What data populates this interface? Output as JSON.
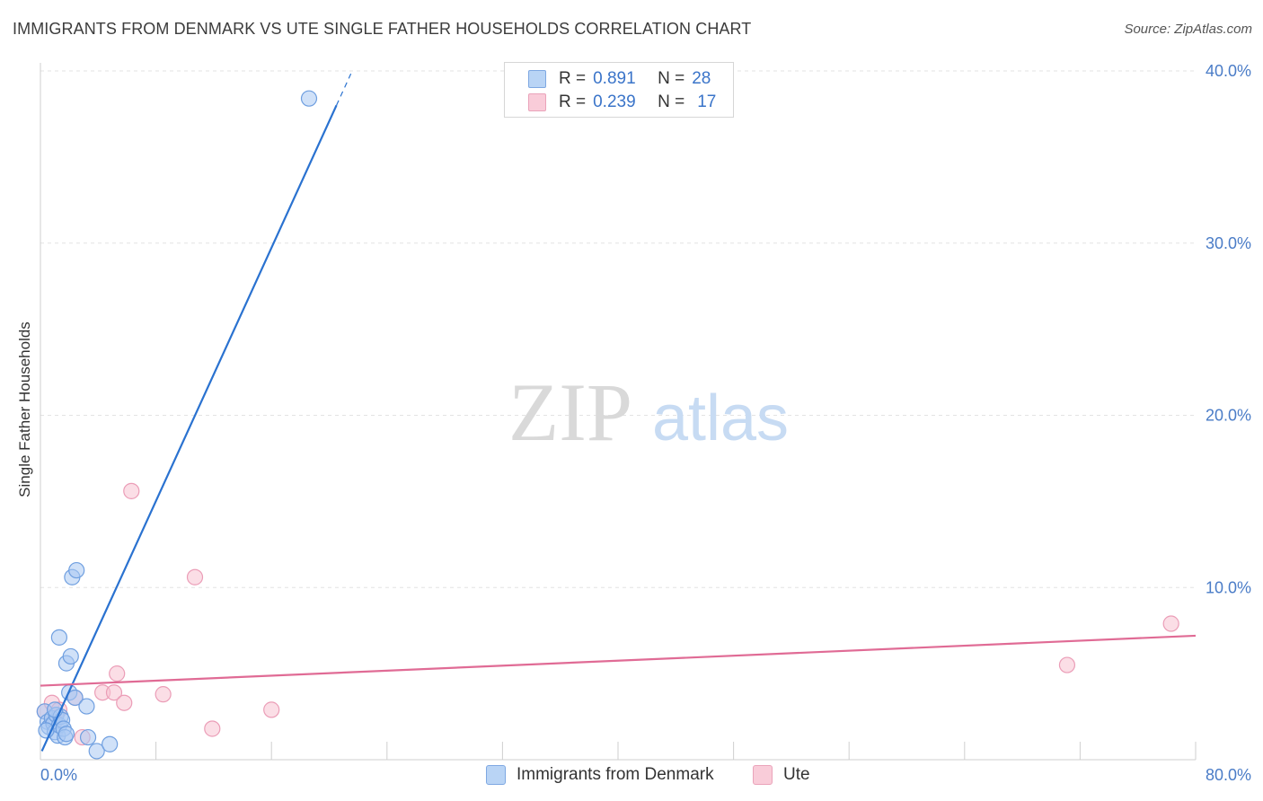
{
  "header": {
    "title": "IMMIGRANTS FROM DENMARK VS UTE SINGLE FATHER HOUSEHOLDS CORRELATION CHART",
    "source": "Source: ZipAtlas.com"
  },
  "watermark": {
    "zip": "ZIP",
    "atlas": "atlas"
  },
  "legend": {
    "r_label": "R =",
    "n_label": "N =",
    "rows": [
      {
        "r": "0.891",
        "n": "28",
        "color": "#a9c8f2",
        "border": "#6f9fe0"
      },
      {
        "r": "0.239",
        "n": "17",
        "color": "#f7c3d2",
        "border": "#e99ab3"
      }
    ]
  },
  "bottom_legend": {
    "items": [
      {
        "label": "Immigrants from Denmark",
        "color": "#b9d4f5",
        "border": "#7ea8e2"
      },
      {
        "label": "Ute",
        "color": "#f9ccd9",
        "border": "#eaa3ba"
      }
    ]
  },
  "chart_data": {
    "type": "scatter",
    "title": "IMMIGRANTS FROM DENMARK VS UTE SINGLE FATHER HOUSEHOLDS CORRELATION CHART",
    "xlabel": "",
    "ylabel": "Single Father Households",
    "xlim": [
      0,
      80
    ],
    "ylim": [
      0,
      40
    ],
    "x_tick_labels": [
      "0.0%",
      "80.0%"
    ],
    "y_ticks": [
      10,
      20,
      30,
      40
    ],
    "y_tick_labels": [
      "10.0%",
      "20.0%",
      "30.0%",
      "40.0%"
    ],
    "grid": true,
    "legend_position": "top-center",
    "series": [
      {
        "name": "Immigrants from Denmark",
        "color": "#5b9ae8",
        "line_color": "#2a72d0",
        "R": 0.891,
        "N": 28,
        "trend": {
          "x0": 0.1,
          "y0": 0.5,
          "x1": 20.5,
          "y1": 38.0,
          "dash_to_x": 21.5
        },
        "points": [
          [
            0.3,
            2.8
          ],
          [
            0.5,
            2.2
          ],
          [
            0.6,
            1.9
          ],
          [
            0.8,
            2.4
          ],
          [
            0.9,
            2.1
          ],
          [
            1.0,
            1.6
          ],
          [
            1.1,
            2.6
          ],
          [
            1.2,
            1.4
          ],
          [
            1.3,
            2.0
          ],
          [
            1.4,
            2.5
          ],
          [
            1.5,
            2.3
          ],
          [
            1.6,
            1.8
          ],
          [
            1.7,
            1.3
          ],
          [
            1.8,
            1.5
          ],
          [
            1.3,
            7.1
          ],
          [
            1.8,
            5.6
          ],
          [
            2.0,
            3.9
          ],
          [
            2.1,
            6.0
          ],
          [
            2.2,
            10.6
          ],
          [
            2.5,
            11.0
          ],
          [
            2.4,
            3.6
          ],
          [
            3.2,
            3.1
          ],
          [
            3.3,
            1.3
          ],
          [
            3.9,
            0.5
          ],
          [
            4.8,
            0.9
          ],
          [
            18.6,
            38.4
          ],
          [
            0.4,
            1.7
          ],
          [
            1.0,
            2.9
          ]
        ]
      },
      {
        "name": "Ute",
        "color": "#f2a4bd",
        "line_color": "#e06b95",
        "R": 0.239,
        "N": 17,
        "trend": {
          "x0": 0.0,
          "y0": 4.3,
          "x1": 80.0,
          "y1": 7.2
        },
        "points": [
          [
            0.3,
            2.8
          ],
          [
            0.8,
            3.3
          ],
          [
            1.3,
            2.9
          ],
          [
            2.4,
            3.6
          ],
          [
            2.9,
            1.3
          ],
          [
            4.3,
            3.9
          ],
          [
            5.1,
            3.9
          ],
          [
            5.3,
            5.0
          ],
          [
            5.8,
            3.3
          ],
          [
            6.3,
            15.6
          ],
          [
            8.5,
            3.8
          ],
          [
            10.7,
            10.6
          ],
          [
            11.9,
            1.8
          ],
          [
            16.0,
            2.9
          ],
          [
            71.1,
            5.5
          ],
          [
            78.3,
            7.9
          ],
          [
            1.0,
            2.2
          ]
        ]
      }
    ]
  }
}
